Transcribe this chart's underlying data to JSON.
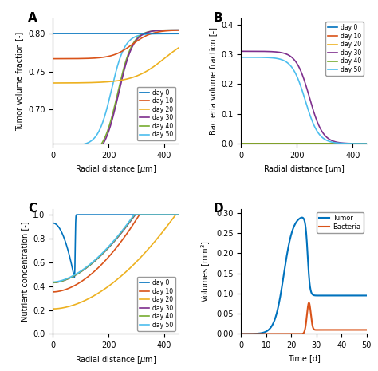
{
  "colors": {
    "day0": "#0072BD",
    "day10": "#D95319",
    "day20": "#EDB120",
    "day30": "#7E2F8E",
    "day40": "#77AC30",
    "day50": "#4DBEEE"
  },
  "legend_labels": [
    "day 0",
    "day 10",
    "day 20",
    "day 30",
    "day 40",
    "day 50"
  ],
  "panel_labels": [
    "A",
    "B",
    "C",
    "D"
  ],
  "figsize": [
    4.74,
    4.65
  ],
  "dpi": 100
}
